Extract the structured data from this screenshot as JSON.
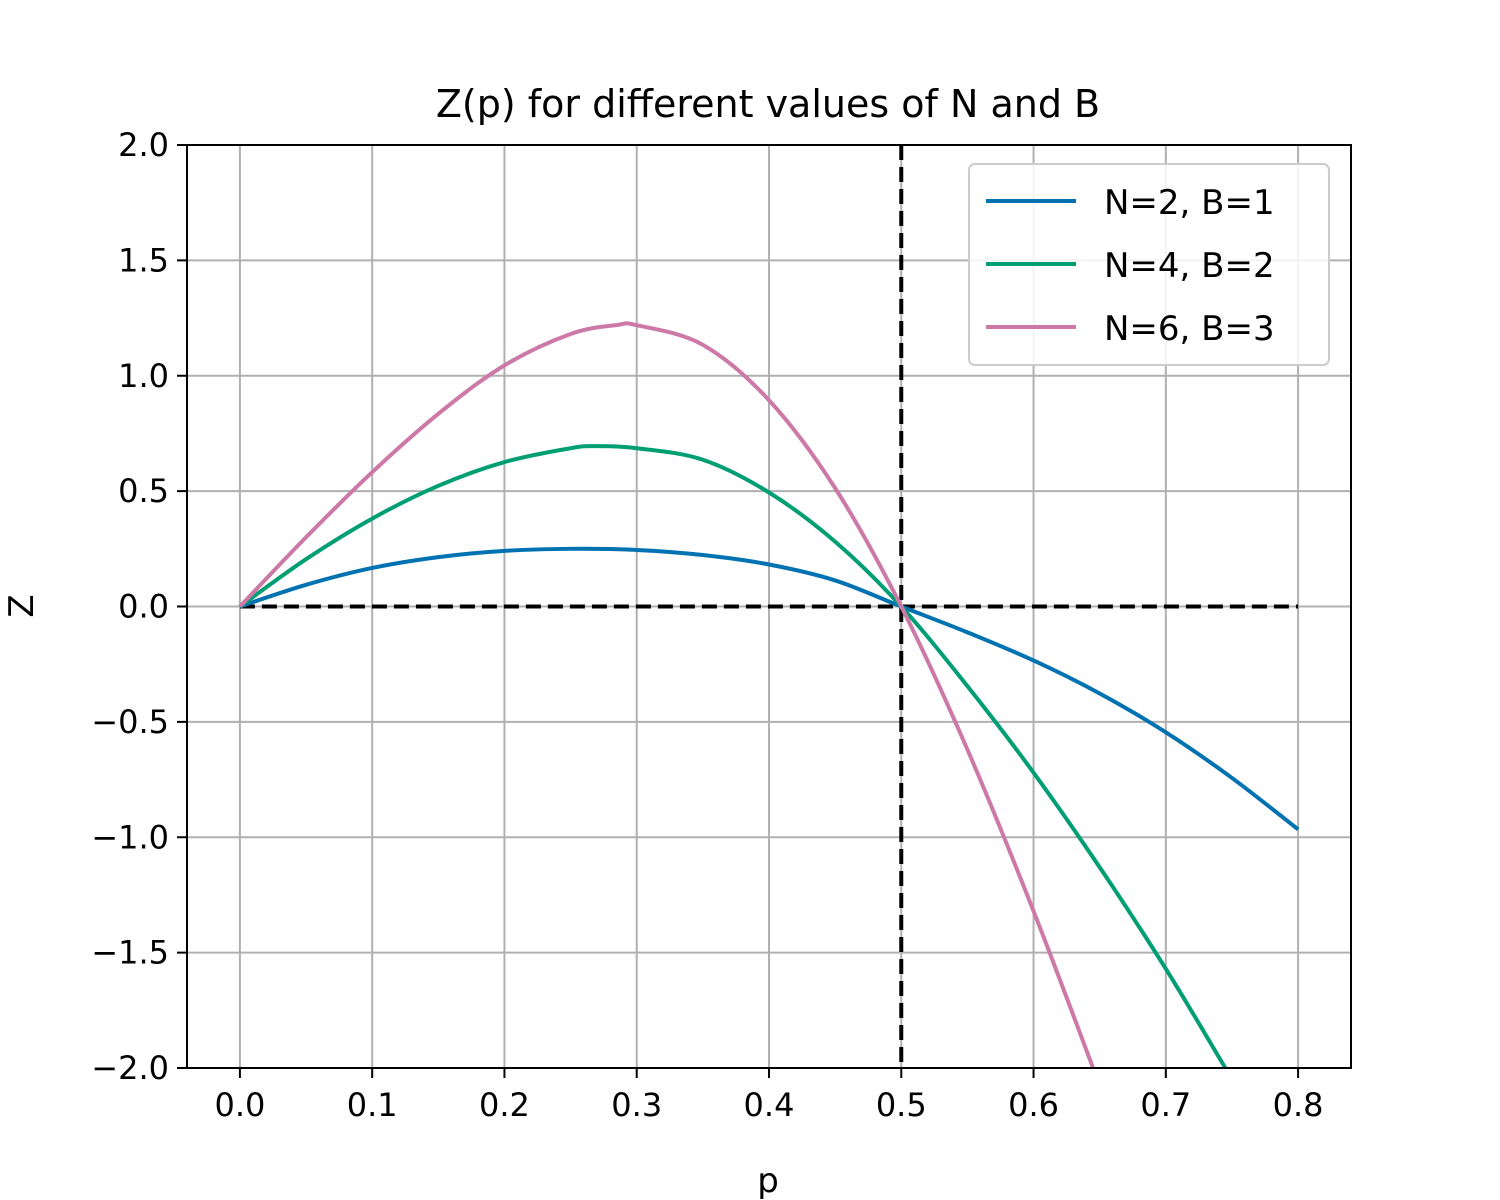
{
  "chart_data": {
    "type": "line",
    "title": "Z(p) for different values of N and B",
    "xlabel": "p",
    "ylabel": "Z",
    "xlim": [
      -0.04,
      0.84
    ],
    "ylim": [
      -2.0,
      2.0
    ],
    "xticks": [
      0.0,
      0.1,
      0.2,
      0.3,
      0.4,
      0.5,
      0.6,
      0.7,
      0.8
    ],
    "xtick_labels": [
      "0.0",
      "0.1",
      "0.2",
      "0.3",
      "0.4",
      "0.5",
      "0.6",
      "0.7",
      "0.8"
    ],
    "yticks": [
      -2.0,
      -1.5,
      -1.0,
      -0.5,
      0.0,
      0.5,
      1.0,
      1.5,
      2.0
    ],
    "ytick_labels": [
      "−2.0",
      "−1.5",
      "−1.0",
      "−0.5",
      "0.0",
      "0.5",
      "1.0",
      "1.5",
      "2.0"
    ],
    "grid": true,
    "legend_position": "upper-right",
    "series": [
      {
        "name": "N=2, B=1",
        "color": "#0072b2",
        "x": [
          0.0,
          0.05,
          0.1,
          0.15,
          0.2,
          0.25,
          0.3,
          0.35,
          0.4,
          0.45,
          0.5,
          0.55,
          0.6,
          0.65,
          0.7,
          0.75,
          0.8
        ],
        "y": [
          0.0,
          0.094,
          0.167,
          0.214,
          0.241,
          0.25,
          0.245,
          0.223,
          0.182,
          0.113,
          0.0,
          -0.112,
          -0.234,
          -0.377,
          -0.545,
          -0.743,
          -0.966
        ]
      },
      {
        "name": "N=4, B=2",
        "color": "#009e73",
        "x": [
          0.0,
          0.05,
          0.1,
          0.15,
          0.2,
          0.25,
          0.27,
          0.3,
          0.35,
          0.4,
          0.45,
          0.5,
          0.55,
          0.6,
          0.65,
          0.7,
          0.745
        ],
        "y": [
          0.0,
          0.205,
          0.381,
          0.523,
          0.626,
          0.686,
          0.695,
          0.686,
          0.636,
          0.494,
          0.281,
          0.0,
          -0.345,
          -0.72,
          -1.13,
          -1.57,
          -2.0
        ]
      },
      {
        "name": "N=6, B=3",
        "color": "#cc79a7",
        "x": [
          0.0,
          0.05,
          0.1,
          0.15,
          0.2,
          0.25,
          0.285,
          0.3,
          0.35,
          0.4,
          0.45,
          0.5,
          0.55,
          0.6,
          0.645
        ],
        "y": [
          0.0,
          0.3,
          0.582,
          0.835,
          1.045,
          1.181,
          1.22,
          1.219,
          1.134,
          0.894,
          0.513,
          0.0,
          -0.62,
          -1.32,
          -2.0
        ]
      }
    ],
    "reference_lines": [
      {
        "orientation": "horizontal",
        "y": 0.0,
        "x_from": 0.0,
        "x_to": 0.8,
        "style": "dashed",
        "color": "#000000"
      },
      {
        "orientation": "vertical",
        "x": 0.5,
        "style": "dashed",
        "color": "#000000"
      }
    ]
  }
}
